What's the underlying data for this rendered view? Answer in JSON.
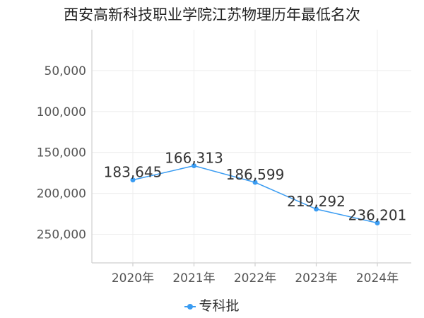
{
  "chart_data": {
    "type": "line",
    "title": "西安高新科技职业学院江苏物理历年最低名次",
    "categories": [
      "2020年",
      "2021年",
      "2022年",
      "2023年",
      "2024年"
    ],
    "series": [
      {
        "name": "专科批",
        "values": [
          183645,
          166313,
          186599,
          219292,
          236201
        ],
        "labels": [
          "183,645",
          "166,313",
          "186,599",
          "219,292",
          "236,201"
        ]
      }
    ],
    "y_ticks": [
      50000,
      100000,
      150000,
      200000,
      250000
    ],
    "y_tick_labels": [
      "50,000",
      "100,000",
      "150,000",
      "200,000",
      "250,000"
    ],
    "ylim": [
      0,
      285000
    ],
    "y_inverted": true,
    "grid": true,
    "legend_position": "bottom-center",
    "colors": {
      "series": "#3a9cf2"
    }
  }
}
